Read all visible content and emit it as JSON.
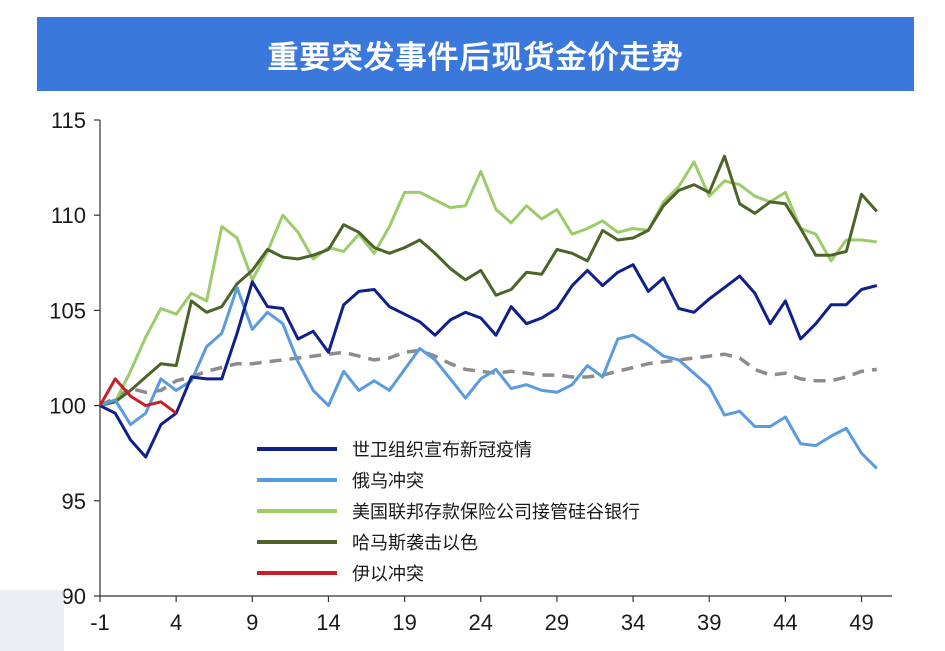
{
  "title": "重要突发事件后现货金价走势",
  "chart_data": {
    "type": "line",
    "title": "重要突发事件后现货金价走势",
    "xlim": [
      -1,
      51
    ],
    "ylim": [
      90,
      115
    ],
    "x_ticks": [
      -1,
      4,
      9,
      14,
      19,
      24,
      29,
      34,
      39,
      44,
      49
    ],
    "y_ticks": [
      90,
      95,
      100,
      105,
      110,
      115
    ],
    "legend_position": "bottom-center",
    "series": [
      {
        "name": "世卫组织宣布新冠疫情",
        "color": "#10208a",
        "x_start": -1,
        "values": [
          100,
          99.6,
          98.2,
          97.3,
          99.0,
          99.6,
          101.5,
          101.4,
          101.4,
          103.8,
          106.5,
          105.2,
          105.1,
          103.5,
          103.9,
          102.8,
          105.3,
          106.0,
          106.1,
          105.2,
          104.8,
          104.4,
          103.7,
          104.5,
          104.9,
          104.6,
          103.7,
          105.2,
          104.3,
          104.6,
          105.1,
          106.3,
          107.1,
          106.3,
          107.0,
          107.4,
          106.0,
          106.7,
          105.1,
          104.9,
          105.6,
          106.2,
          106.8,
          105.9,
          104.3,
          105.5,
          103.5,
          104.3,
          105.3,
          105.3,
          106.1,
          106.3
        ]
      },
      {
        "name": "俄乌冲突",
        "color": "#5a9ae0",
        "x_start": -1,
        "values": [
          100,
          100.3,
          99.0,
          99.6,
          101.4,
          100.8,
          101.3,
          103.1,
          103.8,
          106.2,
          104.0,
          104.9,
          104.3,
          102.3,
          100.8,
          100.0,
          101.8,
          100.8,
          101.3,
          100.8,
          101.9,
          103.0,
          102.4,
          101.4,
          100.4,
          101.4,
          101.9,
          100.9,
          101.1,
          100.8,
          100.7,
          101.1,
          102.1,
          101.5,
          103.5,
          103.7,
          103.2,
          102.6,
          102.4,
          101.7,
          101.0,
          99.5,
          99.7,
          98.9,
          98.9,
          99.4,
          98.0,
          97.9,
          98.4,
          98.8,
          97.5,
          96.7
        ]
      },
      {
        "name": "美国联邦存款保险公司接管硅谷银行",
        "color": "#9ccc6a",
        "x_start": -1,
        "values": [
          100,
          100.2,
          101.8,
          103.6,
          105.1,
          104.8,
          105.9,
          105.5,
          109.4,
          108.8,
          106.6,
          108.1,
          110.0,
          109.1,
          107.7,
          108.3,
          108.1,
          109.0,
          108.0,
          109.4,
          111.2,
          111.2,
          110.8,
          110.4,
          110.5,
          112.3,
          110.3,
          109.6,
          110.5,
          109.8,
          110.3,
          109.0,
          109.3,
          109.7,
          109.1,
          109.3,
          109.2,
          110.7,
          111.5,
          112.8,
          111.0,
          111.8,
          111.6,
          111.0,
          110.7,
          111.2,
          109.3,
          109.0,
          107.6,
          108.7,
          108.7,
          108.6
        ]
      },
      {
        "name": "哈马斯袭击以色",
        "color": "#4c6428",
        "x_start": -1,
        "values": [
          100,
          100.2,
          100.8,
          101.5,
          102.2,
          102.1,
          105.5,
          104.9,
          105.2,
          106.4,
          107.1,
          108.2,
          107.8,
          107.7,
          107.9,
          108.2,
          109.5,
          109.1,
          108.3,
          108.0,
          108.3,
          108.7,
          108.0,
          107.2,
          106.6,
          107.1,
          105.8,
          106.1,
          107.0,
          106.9,
          108.2,
          108.0,
          107.6,
          109.2,
          108.7,
          108.8,
          109.2,
          110.5,
          111.3,
          111.6,
          111.2,
          113.1,
          110.6,
          110.1,
          110.7,
          110.6,
          109.3,
          107.9,
          107.9,
          108.1,
          111.1,
          110.2
        ]
      },
      {
        "name": "伊以冲突",
        "color": "#c8202a",
        "x_start": -1,
        "values": [
          100,
          101.4,
          100.5,
          100.0,
          100.2,
          99.6
        ]
      }
    ],
    "reference_line": {
      "color": "#8c8c8c",
      "style": "dashed",
      "x_start": -1,
      "values": [
        100,
        100.4,
        100.9,
        100.7,
        100.8,
        101.3,
        101.5,
        101.8,
        102.0,
        102.2,
        102.2,
        102.3,
        102.4,
        102.5,
        102.6,
        102.7,
        102.8,
        102.6,
        102.4,
        102.5,
        102.8,
        102.9,
        102.6,
        102.2,
        101.9,
        101.8,
        101.7,
        101.8,
        101.7,
        101.6,
        101.6,
        101.5,
        101.5,
        101.6,
        101.8,
        102.0,
        102.2,
        102.3,
        102.4,
        102.5,
        102.6,
        102.7,
        102.5,
        101.9,
        101.6,
        101.7,
        101.4,
        101.3,
        101.3,
        101.5,
        101.8,
        101.9
      ]
    }
  }
}
